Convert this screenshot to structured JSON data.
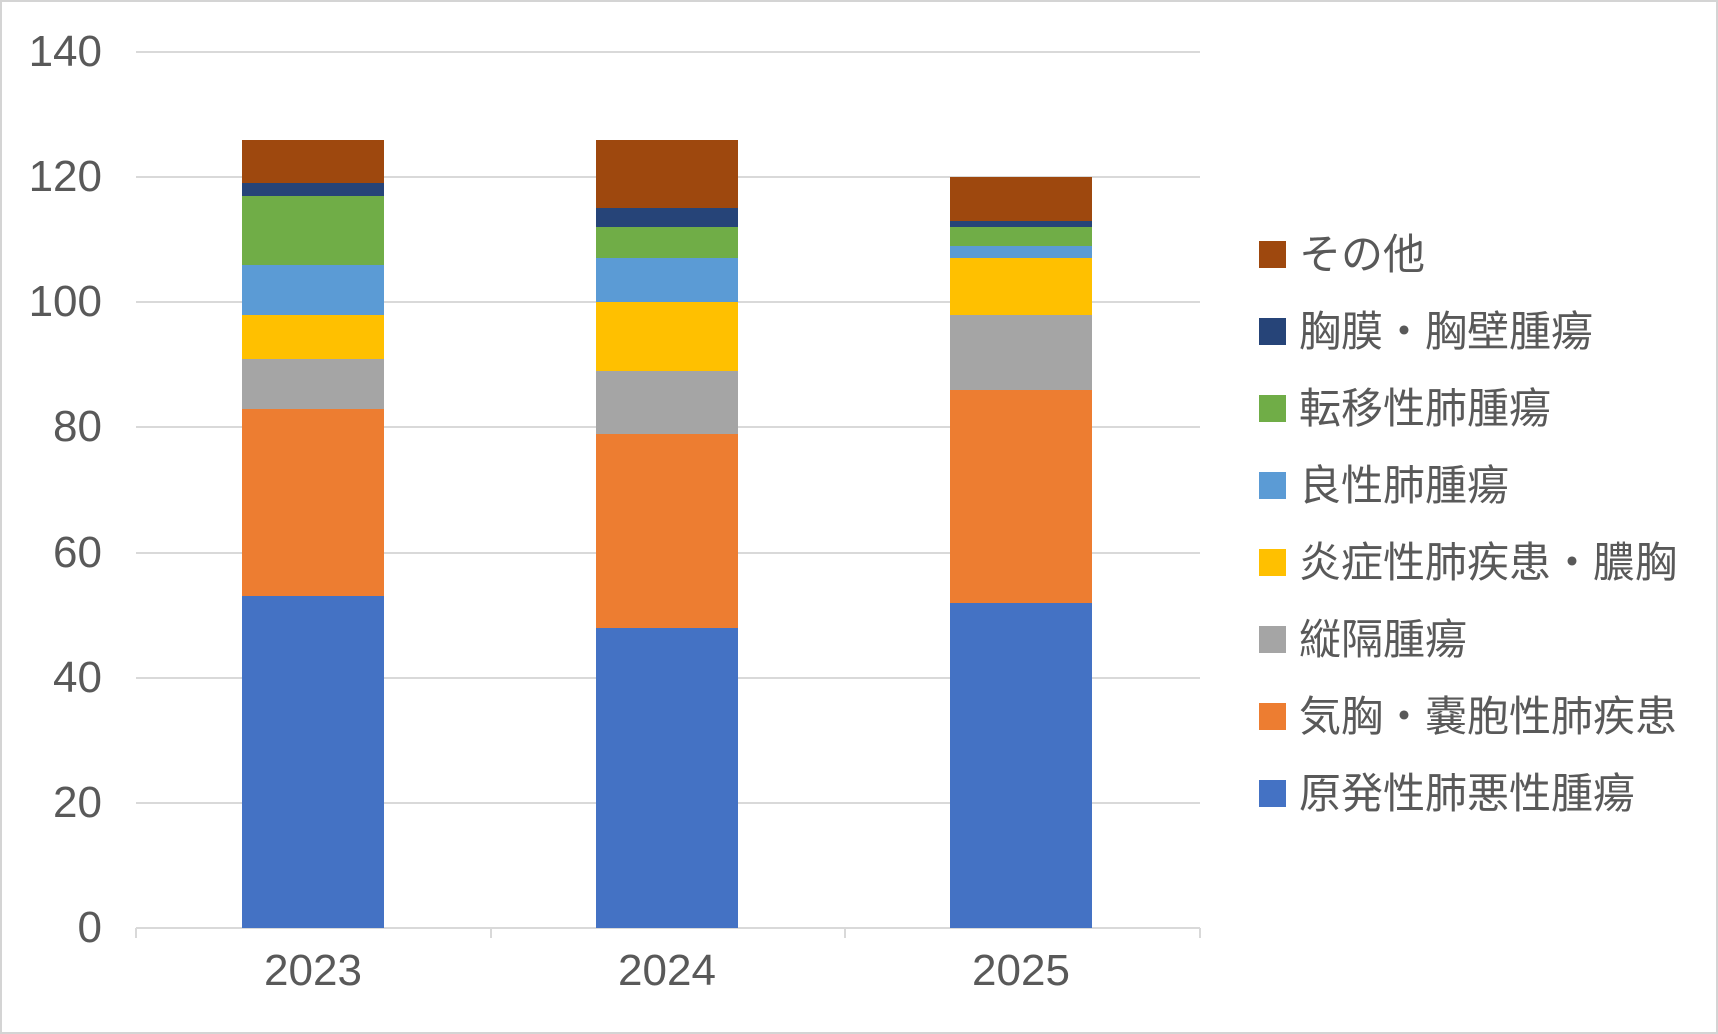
{
  "chart_data": {
    "type": "bar",
    "stacked": true,
    "title": "",
    "xlabel": "",
    "ylabel": "",
    "categories": [
      "2023",
      "2024",
      "2025"
    ],
    "series": [
      {
        "name": "原発性肺悪性腫瘍",
        "color": "#4472C4",
        "values": [
          53,
          48,
          52
        ]
      },
      {
        "name": "気胸・嚢胞性肺疾患",
        "color": "#ED7D31",
        "values": [
          30,
          31,
          34
        ]
      },
      {
        "name": "縦隔腫瘍",
        "color": "#A5A5A5",
        "values": [
          8,
          10,
          12
        ]
      },
      {
        "name": "炎症性肺疾患・膿胸",
        "color": "#FFC000",
        "values": [
          7,
          11,
          9
        ]
      },
      {
        "name": "良性肺腫瘍",
        "color": "#5B9BD5",
        "values": [
          8,
          7,
          2
        ]
      },
      {
        "name": "転移性肺腫瘍",
        "color": "#70AD47",
        "values": [
          11,
          5,
          3
        ]
      },
      {
        "name": "胸膜・胸壁腫瘍",
        "color": "#264478",
        "values": [
          2,
          3,
          1
        ]
      },
      {
        "name": "その他",
        "color": "#9E480E",
        "values": [
          7,
          11,
          7
        ]
      }
    ],
    "totals": [
      126,
      126,
      120
    ],
    "ylim": [
      0,
      140
    ],
    "yticks": [
      0,
      20,
      40,
      60,
      80,
      100,
      120,
      140
    ],
    "grid": "horizontal",
    "legend_position": "right",
    "legend_order": "reversed-top-to-bottom",
    "colors": {
      "gridline": "#D9D9D9",
      "axis_line": "#D9D9D9",
      "tick_label": "#595959",
      "legend_text": "#595959",
      "background": "#FFFFFF",
      "frame_border": "#D4D4D4"
    }
  }
}
